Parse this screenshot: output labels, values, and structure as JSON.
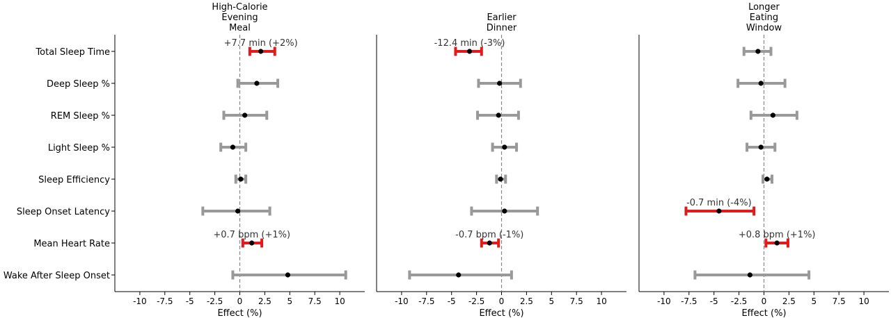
{
  "chart_data": {
    "type": "forest",
    "xlabel": "Effect (%)",
    "xlim": [
      -12.5,
      12.5
    ],
    "xticks": [
      -10,
      -7.5,
      -5,
      -2.5,
      0,
      2.5,
      5,
      7.5,
      10
    ],
    "xtick_labels": [
      "-10",
      "-7.5",
      "-5",
      "-2.5",
      "0",
      "2.5",
      "5",
      "7.5",
      "10"
    ],
    "reference_line": 0,
    "rows": [
      "Total Sleep Time",
      "Deep Sleep %",
      "REM Sleep %",
      "Light Sleep %",
      "Sleep Efficiency",
      "Sleep Onset Latency",
      "Mean Heart Rate",
      "Wake After Sleep Onset"
    ],
    "colors": {
      "significant": "#e31a1c",
      "nonsignificant": "#999999",
      "point": "#000000",
      "reference": "#888888"
    },
    "panels": [
      {
        "title_lines": [
          "High-Calorie",
          "Evening",
          "Meal"
        ],
        "estimates": [
          {
            "est": 2.1,
            "lo": 1.0,
            "hi": 3.5,
            "significant": true,
            "annotation": "+7.7 min (+2%)"
          },
          {
            "est": 1.7,
            "lo": -0.2,
            "hi": 3.8,
            "significant": false,
            "annotation": ""
          },
          {
            "est": 0.5,
            "lo": -1.6,
            "hi": 2.7,
            "significant": false,
            "annotation": ""
          },
          {
            "est": -0.7,
            "lo": -1.9,
            "hi": 0.6,
            "significant": false,
            "annotation": ""
          },
          {
            "est": 0.1,
            "lo": -0.4,
            "hi": 0.6,
            "significant": false,
            "annotation": ""
          },
          {
            "est": -0.2,
            "lo": -3.7,
            "hi": 3.0,
            "significant": false,
            "annotation": ""
          },
          {
            "est": 1.2,
            "lo": 0.3,
            "hi": 2.2,
            "significant": true,
            "annotation": "+0.7 bpm (+1%)"
          },
          {
            "est": 4.8,
            "lo": -0.7,
            "hi": 10.6,
            "significant": false,
            "annotation": ""
          }
        ]
      },
      {
        "title_lines": [
          "Earlier",
          "Dinner"
        ],
        "estimates": [
          {
            "est": -3.2,
            "lo": -4.6,
            "hi": -2.0,
            "significant": true,
            "annotation": "-12.4 min (-3%)"
          },
          {
            "est": -0.2,
            "lo": -2.3,
            "hi": 1.9,
            "significant": false,
            "annotation": ""
          },
          {
            "est": -0.3,
            "lo": -2.4,
            "hi": 1.7,
            "significant": false,
            "annotation": ""
          },
          {
            "est": 0.3,
            "lo": -0.9,
            "hi": 1.5,
            "significant": false,
            "annotation": ""
          },
          {
            "est": -0.1,
            "lo": -0.5,
            "hi": 0.4,
            "significant": false,
            "annotation": ""
          },
          {
            "est": 0.3,
            "lo": -3.0,
            "hi": 3.6,
            "significant": false,
            "annotation": ""
          },
          {
            "est": -1.2,
            "lo": -2.0,
            "hi": -0.3,
            "significant": true,
            "annotation": "-0.7 bpm (-1%)"
          },
          {
            "est": -4.3,
            "lo": -9.2,
            "hi": 1.0,
            "significant": false,
            "annotation": ""
          }
        ]
      },
      {
        "title_lines": [
          "Longer",
          "Eating",
          "Window"
        ],
        "estimates": [
          {
            "est": -0.6,
            "lo": -2.0,
            "hi": 0.7,
            "significant": false,
            "annotation": ""
          },
          {
            "est": -0.3,
            "lo": -2.6,
            "hi": 2.1,
            "significant": false,
            "annotation": ""
          },
          {
            "est": 0.9,
            "lo": -1.3,
            "hi": 3.3,
            "significant": false,
            "annotation": ""
          },
          {
            "est": -0.3,
            "lo": -1.7,
            "hi": 1.1,
            "significant": false,
            "annotation": ""
          },
          {
            "est": 0.3,
            "lo": -0.1,
            "hi": 0.8,
            "significant": false,
            "annotation": ""
          },
          {
            "est": -4.5,
            "lo": -7.8,
            "hi": -1.0,
            "significant": true,
            "annotation": "-0.7 min (-4%)"
          },
          {
            "est": 1.3,
            "lo": 0.2,
            "hi": 2.4,
            "significant": true,
            "annotation": "+0.8 bpm (+1%)"
          },
          {
            "est": -1.4,
            "lo": -6.9,
            "hi": 4.5,
            "significant": false,
            "annotation": ""
          }
        ]
      }
    ]
  }
}
